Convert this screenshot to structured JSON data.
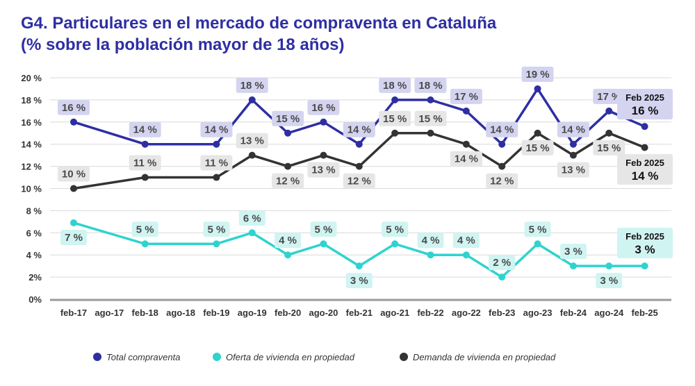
{
  "chart_data": {
    "type": "line",
    "title_line1": "G4. Particulares en el mercado de compraventa en Cataluña",
    "title_line2": "(% sobre la población mayor de 18 años)",
    "categories": [
      "feb-17",
      "ago-17",
      "feb-18",
      "ago-18",
      "feb-19",
      "ago-19",
      "feb-20",
      "ago-20",
      "feb-21",
      "ago-21",
      "feb-22",
      "ago-22",
      "feb-23",
      "ago-23",
      "feb-24",
      "ago-24",
      "feb-25"
    ],
    "y_ticks": [
      "0%",
      "2%",
      "4 %",
      "6 %",
      "8 %",
      "10 %",
      "12 %",
      "14 %",
      "16 %",
      "18 %",
      "20 %"
    ],
    "ylim": [
      0,
      20
    ],
    "series": [
      {
        "name": "Total compraventa",
        "color": "#2e2ea3",
        "label_bg": "#d4d4f0",
        "points": [
          {
            "x": "feb-17",
            "y": 16,
            "label": "16 %",
            "pos": "above"
          },
          {
            "x": "feb-18",
            "y": 14,
            "label": "14 %",
            "pos": "above"
          },
          {
            "x": "feb-19",
            "y": 14,
            "label": "14 %",
            "pos": "above"
          },
          {
            "x": "ago-19",
            "y": 18,
            "label": "18 %",
            "pos": "above"
          },
          {
            "x": "feb-20",
            "y": 15,
            "label": "15 %",
            "pos": "above"
          },
          {
            "x": "ago-20",
            "y": 16,
            "label": "16 %",
            "pos": "above"
          },
          {
            "x": "feb-21",
            "y": 14,
            "label": "14 %",
            "pos": "above"
          },
          {
            "x": "ago-21",
            "y": 18,
            "label": "18 %",
            "pos": "above"
          },
          {
            "x": "feb-22",
            "y": 18,
            "label": "18 %",
            "pos": "above"
          },
          {
            "x": "ago-22",
            "y": 17,
            "label": "17 %",
            "pos": "above"
          },
          {
            "x": "feb-23",
            "y": 14,
            "label": "14 %",
            "pos": "above"
          },
          {
            "x": "ago-23",
            "y": 19,
            "label": "19 %",
            "pos": "above"
          },
          {
            "x": "feb-24",
            "y": 14,
            "label": "14 %",
            "pos": "above"
          },
          {
            "x": "ago-24",
            "y": 17,
            "label": "17 %",
            "pos": "above"
          },
          {
            "x": "feb-25",
            "y": 15.6,
            "label": "",
            "pos": "none"
          }
        ],
        "callout": {
          "title": "Feb 2025",
          "value": "16 %"
        }
      },
      {
        "name": "Demanda de vivienda en propiedad",
        "color": "#333333",
        "label_bg": "#e6e6e6",
        "points": [
          {
            "x": "feb-17",
            "y": 10,
            "label": "10 %",
            "pos": "above"
          },
          {
            "x": "feb-18",
            "y": 11,
            "label": "11 %",
            "pos": "above"
          },
          {
            "x": "feb-19",
            "y": 11,
            "label": "11 %",
            "pos": "above"
          },
          {
            "x": "ago-19",
            "y": 13,
            "label": "13 %",
            "pos": "above"
          },
          {
            "x": "feb-20",
            "y": 12,
            "label": "12 %",
            "pos": "below"
          },
          {
            "x": "ago-20",
            "y": 13,
            "label": "13 %",
            "pos": "below"
          },
          {
            "x": "feb-21",
            "y": 12,
            "label": "12 %",
            "pos": "below"
          },
          {
            "x": "ago-21",
            "y": 15,
            "label": "15 %",
            "pos": "above"
          },
          {
            "x": "feb-22",
            "y": 15,
            "label": "15 %",
            "pos": "above"
          },
          {
            "x": "ago-22",
            "y": 14,
            "label": "14 %",
            "pos": "below"
          },
          {
            "x": "feb-23",
            "y": 12,
            "label": "12 %",
            "pos": "below"
          },
          {
            "x": "ago-23",
            "y": 15,
            "label": "15 %",
            "pos": "below"
          },
          {
            "x": "feb-24",
            "y": 13,
            "label": "13 %",
            "pos": "below"
          },
          {
            "x": "ago-24",
            "y": 15,
            "label": "15 %",
            "pos": "below"
          },
          {
            "x": "feb-25",
            "y": 13.7,
            "label": "",
            "pos": "none"
          }
        ],
        "callout": {
          "title": "Feb 2025",
          "value": "14 %"
        }
      },
      {
        "name": "Oferta de vivienda en propiedad",
        "color": "#2ed3cf",
        "label_bg": "#d0f4f2",
        "points": [
          {
            "x": "feb-17",
            "y": 6.9,
            "label": "7 %",
            "pos": "below"
          },
          {
            "x": "feb-18",
            "y": 5,
            "label": "5 %",
            "pos": "above"
          },
          {
            "x": "feb-19",
            "y": 5,
            "label": "5 %",
            "pos": "above"
          },
          {
            "x": "ago-19",
            "y": 6,
            "label": "6 %",
            "pos": "above"
          },
          {
            "x": "feb-20",
            "y": 4,
            "label": "4 %",
            "pos": "above"
          },
          {
            "x": "ago-20",
            "y": 5,
            "label": "5 %",
            "pos": "above"
          },
          {
            "x": "feb-21",
            "y": 3,
            "label": "3 %",
            "pos": "below"
          },
          {
            "x": "ago-21",
            "y": 5,
            "label": "5 %",
            "pos": "above"
          },
          {
            "x": "feb-22",
            "y": 4,
            "label": "4 %",
            "pos": "above"
          },
          {
            "x": "ago-22",
            "y": 4,
            "label": "4 %",
            "pos": "above"
          },
          {
            "x": "feb-23",
            "y": 2,
            "label": "2 %",
            "pos": "above"
          },
          {
            "x": "ago-23",
            "y": 5,
            "label": "5 %",
            "pos": "above"
          },
          {
            "x": "feb-24",
            "y": 3,
            "label": "3 %",
            "pos": "above"
          },
          {
            "x": "ago-24",
            "y": 3,
            "label": "3 %",
            "pos": "below"
          },
          {
            "x": "feb-25",
            "y": 3,
            "label": "",
            "pos": "none"
          }
        ],
        "callout": {
          "title": "Feb 2025",
          "value": "3 %"
        }
      }
    ],
    "legend": [
      {
        "name": "Total compraventa",
        "color": "#2e2ea3"
      },
      {
        "name": "Oferta de vivienda en propiedad",
        "color": "#2ed3cf"
      },
      {
        "name": "Demanda de vivienda en propiedad",
        "color": "#333333"
      }
    ]
  }
}
